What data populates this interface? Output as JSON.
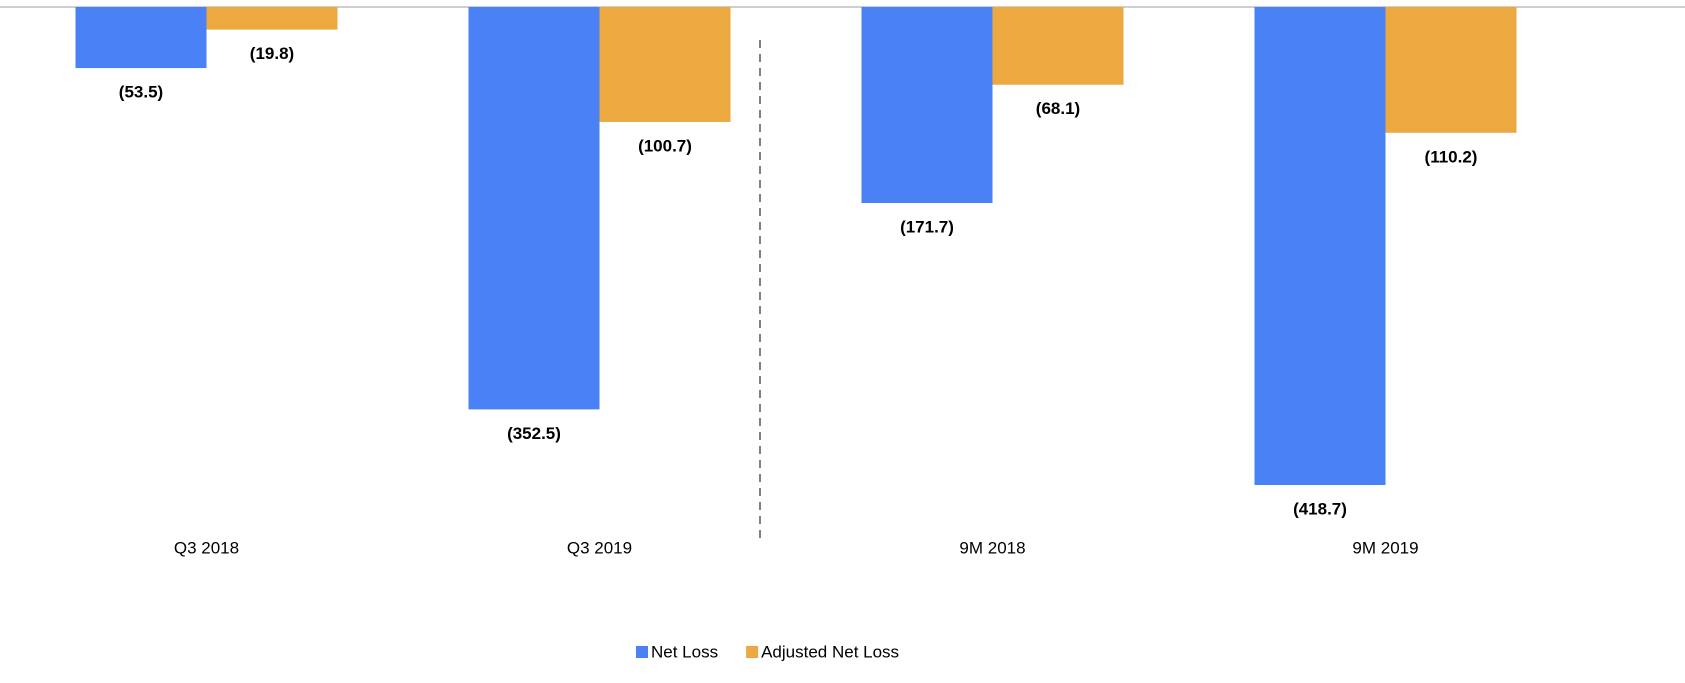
{
  "chart_data": {
    "type": "bar",
    "categories": [
      "Q3 2018",
      "Q3 2019",
      "9M 2018",
      "9M 2019"
    ],
    "series": [
      {
        "name": "Net Loss",
        "color": "#4a82f5",
        "values": [
          -53.5,
          -352.5,
          -171.7,
          -418.7
        ],
        "value_labels": [
          "(53.5)",
          "(352.5)",
          "(171.7)",
          "(418.7)"
        ]
      },
      {
        "name": "Adjusted Net Loss",
        "color": "#eba940",
        "values": [
          -19.8,
          -100.7,
          -68.1,
          -110.2
        ],
        "value_labels": [
          "(19.8)",
          "(100.7)",
          "(68.1)",
          "(110.2)"
        ]
      }
    ],
    "ylim": [
      -450,
      0
    ]
  }
}
